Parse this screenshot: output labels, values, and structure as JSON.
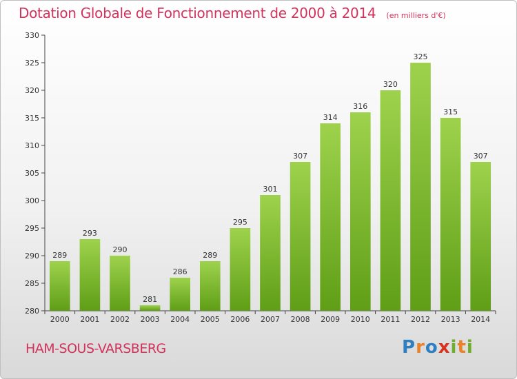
{
  "chart_data": {
    "type": "bar",
    "title": "Dotation Globale de Fonctionnement de 2000 à 2014",
    "unit": "(en milliers d'€)",
    "categories": [
      "2000",
      "2001",
      "2002",
      "2003",
      "2004",
      "2005",
      "2006",
      "2007",
      "2008",
      "2009",
      "2010",
      "2011",
      "2012",
      "2013",
      "2014"
    ],
    "values": [
      289,
      293,
      290,
      281,
      286,
      289,
      295,
      301,
      307,
      314,
      316,
      320,
      325,
      315,
      307
    ],
    "ylim": [
      280,
      330
    ],
    "yticks": [
      280,
      285,
      290,
      295,
      300,
      305,
      310,
      315,
      320,
      325,
      330
    ],
    "grid": false,
    "bar_color": "#7dbb2e"
  },
  "commune": "HAM-SOUS-VARSBERG",
  "brand": {
    "letters": [
      "P",
      "r",
      "o",
      "x",
      "i",
      "t",
      "i"
    ],
    "colors": [
      "#2e7fc1",
      "#e8822b",
      "#2e7fc1",
      "#d7341f",
      "#6eae2c",
      "#e8822b",
      "#6eae2c"
    ]
  }
}
